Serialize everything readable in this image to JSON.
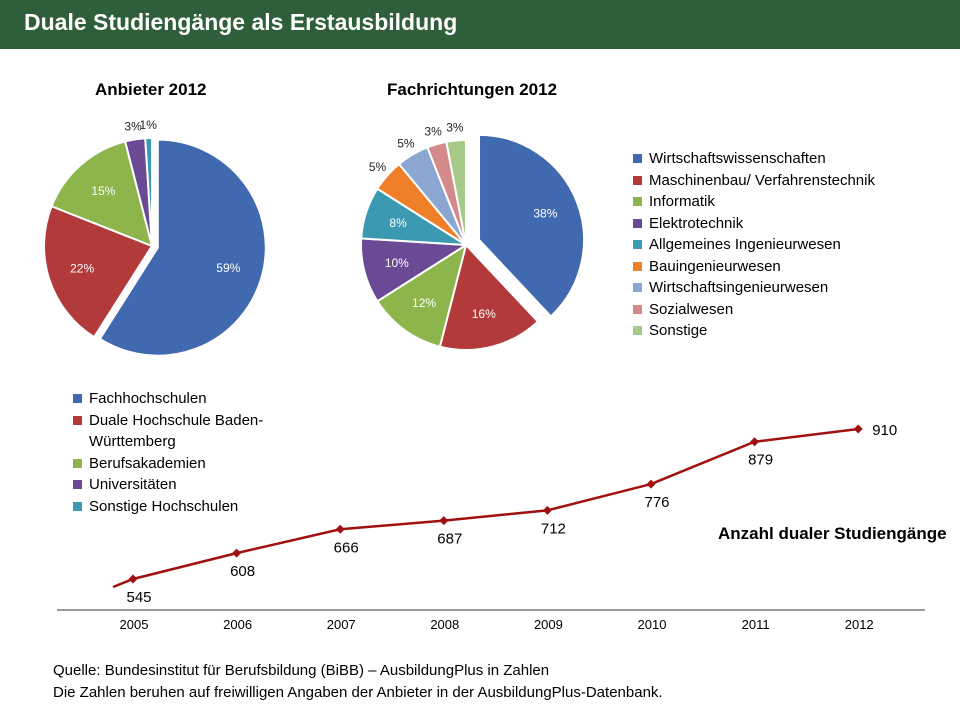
{
  "header": {
    "title": "Duale Studiengänge als Erstausbildung"
  },
  "colors": {
    "header_bg": "#2f5f3a",
    "blue": "#4169b0",
    "red": "#b23a3a",
    "green": "#8db54b",
    "purple": "#6a4a94",
    "teal": "#3b9ab2",
    "orange": "#f07f2a",
    "lightblue": "#8aa6d1",
    "pink": "#d48a8a",
    "lightgreen": "#a7c987",
    "line": "#a01010"
  },
  "chart_data": [
    {
      "type": "pie",
      "title": "Anbieter 2012",
      "slices": [
        {
          "label": "Fachhochschulen",
          "value": 59,
          "display": "59%",
          "color": "#4169b0"
        },
        {
          "label": "Duale Hochschule Baden-Württemberg",
          "value": 22,
          "display": "22%",
          "color": "#b23a3a"
        },
        {
          "label": "Berufsakademien",
          "value": 15,
          "display": "15%",
          "color": "#8db54b"
        },
        {
          "label": "Universitäten",
          "value": 3,
          "display": "3%",
          "color": "#6a4a94"
        },
        {
          "label": "Sonstige Hochschulen",
          "value": 1,
          "display": "1%",
          "color": "#3b9ab2"
        }
      ],
      "legend_placement": "bottom"
    },
    {
      "type": "pie",
      "title": "Fachrichtungen 2012",
      "slices": [
        {
          "label": "Wirtschaftswissenschaften",
          "value": 38,
          "display": "38%",
          "color": "#4169b0"
        },
        {
          "label": "Maschinenbau/ Verfahrenstechnik",
          "value": 16,
          "display": "16%",
          "color": "#b23a3a"
        },
        {
          "label": "Informatik",
          "value": 12,
          "display": "12%",
          "color": "#8db54b"
        },
        {
          "label": "Elektrotechnik",
          "value": 10,
          "display": "10%",
          "color": "#6a4a94"
        },
        {
          "label": "Allgemeines Ingenieurwesen",
          "value": 8,
          "display": "8%",
          "color": "#3b9ab2"
        },
        {
          "label": "Bauingenieurwesen",
          "value": 5,
          "display": "5%",
          "color": "#f07f2a"
        },
        {
          "label": "Wirtschaftsingenieurwesen",
          "value": 5,
          "display": "5%",
          "color": "#8aa6d1"
        },
        {
          "label": "Sozialwesen",
          "value": 3,
          "display": "3%",
          "color": "#d48a8a"
        },
        {
          "label": "Sonstige",
          "value": 3,
          "display": "3%",
          "color": "#a7c987"
        }
      ],
      "legend_placement": "right"
    },
    {
      "type": "line",
      "title": "Anzahl dualer Studiengänge",
      "categories": [
        "2005",
        "2006",
        "2007",
        "2008",
        "2009",
        "2010",
        "2011",
        "2012"
      ],
      "series": [
        {
          "values": [
            545,
            608,
            666,
            687,
            712,
            776,
            879,
            910
          ]
        }
      ],
      "grid": false
    }
  ],
  "footer": {
    "source": "Quelle: Bundesinstitut für Berufsbildung (BiBB)  – AusbildungPlus in Zahlen",
    "note": "Die Zahlen beruhen auf freiwilligen Angaben der Anbieter in der AusbildungPlus-Datenbank."
  }
}
